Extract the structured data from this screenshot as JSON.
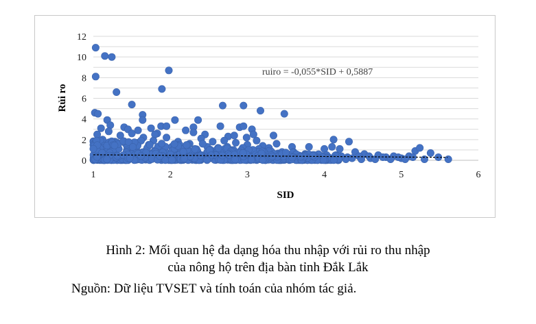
{
  "caption": {
    "line1": "Hình 2: Mối quan hệ đa dạng hóa thu nhập với rủi ro thu nhập",
    "line2": "của nông hộ trên địa bàn tỉnh Đắk Lắk",
    "source": "Nguồn: Dữ liệu TVSET và tính toán của nhóm tác giả."
  },
  "chart_data": {
    "type": "scatter",
    "title": "",
    "xlabel": "SID",
    "ylabel": "Rủi ro",
    "xlim": [
      1,
      6
    ],
    "ylim": [
      0,
      12
    ],
    "xticks": [
      1,
      2,
      3,
      4,
      5,
      6
    ],
    "yticks": [
      0,
      2,
      4,
      6,
      8,
      10,
      12
    ],
    "grid": "horizontal",
    "legend": "none",
    "point_color": "#4472c4",
    "trendline": {
      "type": "linear",
      "slope": -0.055,
      "intercept": 0.5887,
      "style": "dashed",
      "color": "#000000",
      "equation_label": "ruiro = -0,055*SID + 0,5887"
    },
    "series": [
      {
        "points": [
          [
            1.03,
            10.9
          ],
          [
            1.15,
            10.1
          ],
          [
            1.24,
            10.0
          ],
          [
            1.03,
            8.1
          ],
          [
            1.98,
            8.7
          ],
          [
            1.3,
            6.6
          ],
          [
            1.89,
            6.9
          ],
          [
            1.5,
            5.4
          ],
          [
            2.68,
            5.3
          ],
          [
            2.95,
            5.3
          ],
          [
            3.17,
            4.8
          ],
          [
            3.48,
            4.5
          ],
          [
            1.02,
            4.6
          ],
          [
            1.06,
            4.5
          ],
          [
            1.64,
            4.4
          ],
          [
            1.64,
            3.9
          ],
          [
            1.18,
            3.9
          ],
          [
            2.06,
            3.9
          ],
          [
            2.36,
            3.9
          ],
          [
            2.65,
            3.3
          ],
          [
            2.9,
            3.2
          ],
          [
            2.95,
            3.3
          ],
          [
            3.06,
            3.0
          ],
          [
            3.34,
            2.4
          ],
          [
            4.12,
            2.0
          ],
          [
            4.32,
            1.8
          ],
          [
            3.08,
            2.5
          ],
          [
            2.3,
            3.2
          ],
          [
            2.45,
            2.5
          ],
          [
            1.4,
            3.2
          ],
          [
            1.45,
            3.0
          ],
          [
            1.1,
            3.1
          ],
          [
            1.22,
            3.4
          ],
          [
            1.75,
            3.1
          ],
          [
            1.88,
            3.3
          ],
          [
            1.95,
            3.3
          ],
          [
            1.58,
            2.9
          ],
          [
            1.83,
            2.6
          ],
          [
            2.2,
            2.9
          ],
          [
            2.3,
            2.7
          ],
          [
            2.75,
            2.3
          ],
          [
            2.83,
            2.4
          ],
          [
            2.99,
            2.2
          ],
          [
            3.12,
            1.9
          ],
          [
            3.2,
            1.4
          ],
          [
            3.38,
            1.6
          ],
          [
            3.58,
            1.3
          ],
          [
            3.8,
            1.3
          ],
          [
            4.0,
            1.1
          ],
          [
            4.1,
            1.3
          ],
          [
            4.2,
            1.1
          ],
          [
            4.4,
            0.8
          ],
          [
            4.52,
            0.6
          ],
          [
            4.7,
            0.5
          ],
          [
            4.9,
            0.4
          ],
          [
            5.1,
            0.4
          ],
          [
            5.18,
            0.9
          ],
          [
            5.24,
            1.2
          ],
          [
            5.38,
            0.7
          ],
          [
            5.48,
            0.3
          ],
          [
            5.61,
            0.1
          ],
          [
            5.3,
            0.1
          ],
          [
            5.0,
            0.2
          ],
          [
            4.8,
            0.3
          ],
          [
            4.6,
            0.2
          ],
          [
            4.45,
            0.4
          ],
          [
            4.3,
            0.3
          ],
          [
            4.15,
            0.5
          ],
          [
            3.95,
            0.4
          ],
          [
            3.75,
            0.6
          ],
          [
            3.6,
            0.8
          ],
          [
            3.45,
            0.7
          ],
          [
            3.3,
            0.9
          ],
          [
            3.15,
            1.1
          ],
          [
            3.0,
            1.5
          ],
          [
            2.85,
            1.7
          ],
          [
            2.7,
            1.9
          ],
          [
            2.55,
            1.8
          ],
          [
            2.4,
            2.1
          ],
          [
            2.25,
            1.6
          ],
          [
            2.1,
            1.8
          ],
          [
            1.95,
            2.2
          ],
          [
            1.8,
            2.5
          ],
          [
            1.65,
            2.2
          ],
          [
            1.5,
            2.6
          ],
          [
            1.35,
            2.4
          ],
          [
            1.2,
            2.8
          ],
          [
            1.05,
            2.5
          ],
          [
            1.12,
            2.0
          ],
          [
            1.28,
            1.8
          ],
          [
            1.42,
            1.6
          ],
          [
            1.58,
            1.7
          ],
          [
            1.72,
            1.5
          ],
          [
            1.88,
            1.4
          ],
          [
            2.02,
            1.3
          ],
          [
            2.18,
            1.2
          ],
          [
            2.32,
            1.1
          ],
          [
            2.48,
            1.3
          ],
          [
            2.62,
            1.2
          ],
          [
            2.78,
            1.0
          ],
          [
            2.92,
            0.9
          ],
          [
            3.08,
            0.8
          ],
          [
            3.22,
            0.7
          ],
          [
            3.38,
            0.6
          ],
          [
            3.52,
            0.5
          ],
          [
            3.68,
            0.4
          ],
          [
            3.82,
            0.3
          ],
          [
            3.98,
            0.2
          ],
          [
            4.12,
            0.2
          ],
          [
            4.28,
            0.1
          ],
          [
            1.08,
            1.2
          ],
          [
            1.18,
            0.9
          ],
          [
            1.25,
            0.6
          ],
          [
            1.33,
            1.1
          ],
          [
            1.47,
            0.8
          ],
          [
            1.55,
            0.5
          ],
          [
            1.68,
            0.9
          ],
          [
            1.77,
            0.7
          ],
          [
            1.9,
            0.6
          ],
          [
            2.05,
            0.8
          ],
          [
            2.15,
            0.5
          ],
          [
            2.27,
            0.7
          ],
          [
            2.38,
            0.4
          ],
          [
            2.5,
            0.6
          ],
          [
            2.58,
            0.3
          ],
          [
            2.7,
            0.5
          ],
          [
            2.82,
            0.4
          ],
          [
            2.97,
            0.3
          ],
          [
            3.1,
            0.2
          ],
          [
            3.25,
            0.3
          ],
          [
            3.4,
            0.2
          ],
          [
            3.55,
            0.1
          ],
          [
            3.7,
            0.2
          ],
          [
            3.9,
            0.1
          ],
          [
            4.05,
            0.3
          ],
          [
            1.02,
            0.2
          ],
          [
            1.04,
            0.5
          ],
          [
            1.06,
            1.6
          ],
          [
            1.09,
            1.9
          ],
          [
            1.14,
            1.4
          ],
          [
            1.16,
            0.3
          ],
          [
            1.22,
            1.5
          ],
          [
            1.3,
            0.2
          ],
          [
            1.38,
            0.4
          ],
          [
            1.44,
            1.3
          ],
          [
            1.52,
            1.1
          ],
          [
            1.6,
            0.3
          ],
          [
            1.62,
            1.9
          ],
          [
            1.7,
            1.2
          ],
          [
            1.78,
            1.9
          ],
          [
            1.85,
            0.2
          ],
          [
            1.92,
            1.1
          ],
          [
            1.99,
            0.4
          ],
          [
            2.08,
            0.2
          ],
          [
            2.12,
            1.5
          ],
          [
            2.22,
            0.3
          ],
          [
            2.35,
            0.9
          ],
          [
            2.42,
            1.6
          ],
          [
            2.52,
            0.2
          ],
          [
            2.6,
            1.0
          ],
          [
            2.66,
            0.1
          ],
          [
            2.74,
            1.3
          ],
          [
            2.88,
            0.2
          ],
          [
            2.94,
            1.2
          ],
          [
            3.02,
            0.5
          ],
          [
            3.14,
            0.4
          ],
          [
            3.28,
            1.2
          ],
          [
            3.34,
            0.2
          ],
          [
            3.46,
            0.4
          ],
          [
            3.62,
            0.3
          ],
          [
            3.78,
            0.1
          ],
          [
            3.86,
            0.5
          ],
          [
            4.22,
            0.4
          ],
          [
            4.36,
            0.2
          ],
          [
            4.48,
            0.1
          ],
          [
            4.58,
            0.4
          ],
          [
            4.66,
            0.1
          ],
          [
            4.76,
            0.3
          ],
          [
            4.86,
            0.1
          ],
          [
            4.96,
            0.3
          ],
          [
            5.05,
            0.1
          ],
          [
            5.15,
            0.3
          ]
        ]
      }
    ]
  }
}
